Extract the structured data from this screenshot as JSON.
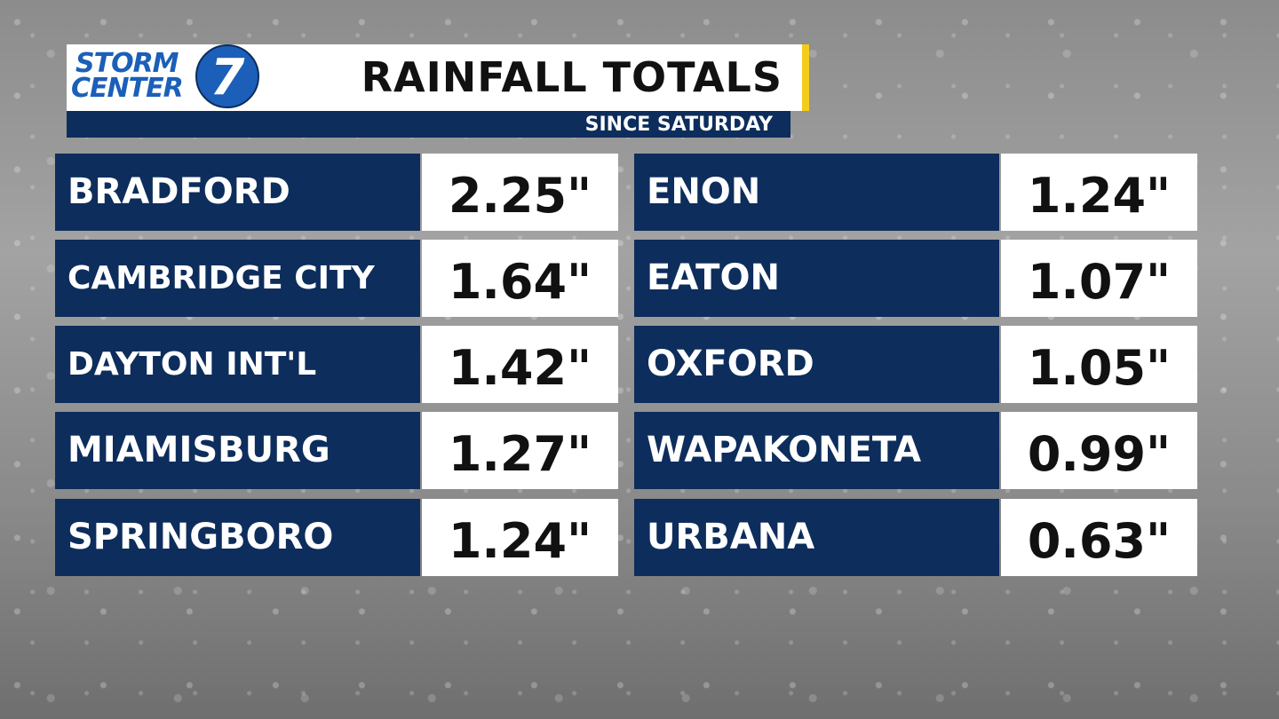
{
  "header": {
    "logo": {
      "line1": "STORM",
      "line2": "CENTER",
      "number": "7"
    },
    "title": "RAINFALL TOTALS",
    "subtitle": "SINCE SATURDAY"
  },
  "table": {
    "columns": [
      {
        "rows": [
          [
            "BRADFORD",
            "2.25\""
          ],
          [
            "CAMBRIDGE CITY",
            "1.64\""
          ],
          [
            "DAYTON INT'L",
            "1.42\""
          ],
          [
            "MIAMISBURG",
            "1.27\""
          ],
          [
            "SPRINGBORO",
            "1.24\""
          ]
        ]
      },
      {
        "rows": [
          [
            "ENON",
            "1.24\""
          ],
          [
            "EATON",
            "1.07\""
          ],
          [
            "OXFORD",
            "1.05\""
          ],
          [
            "WAPAKONETA",
            "0.99\""
          ],
          [
            "URBANA",
            "0.63\""
          ]
        ]
      }
    ]
  }
}
